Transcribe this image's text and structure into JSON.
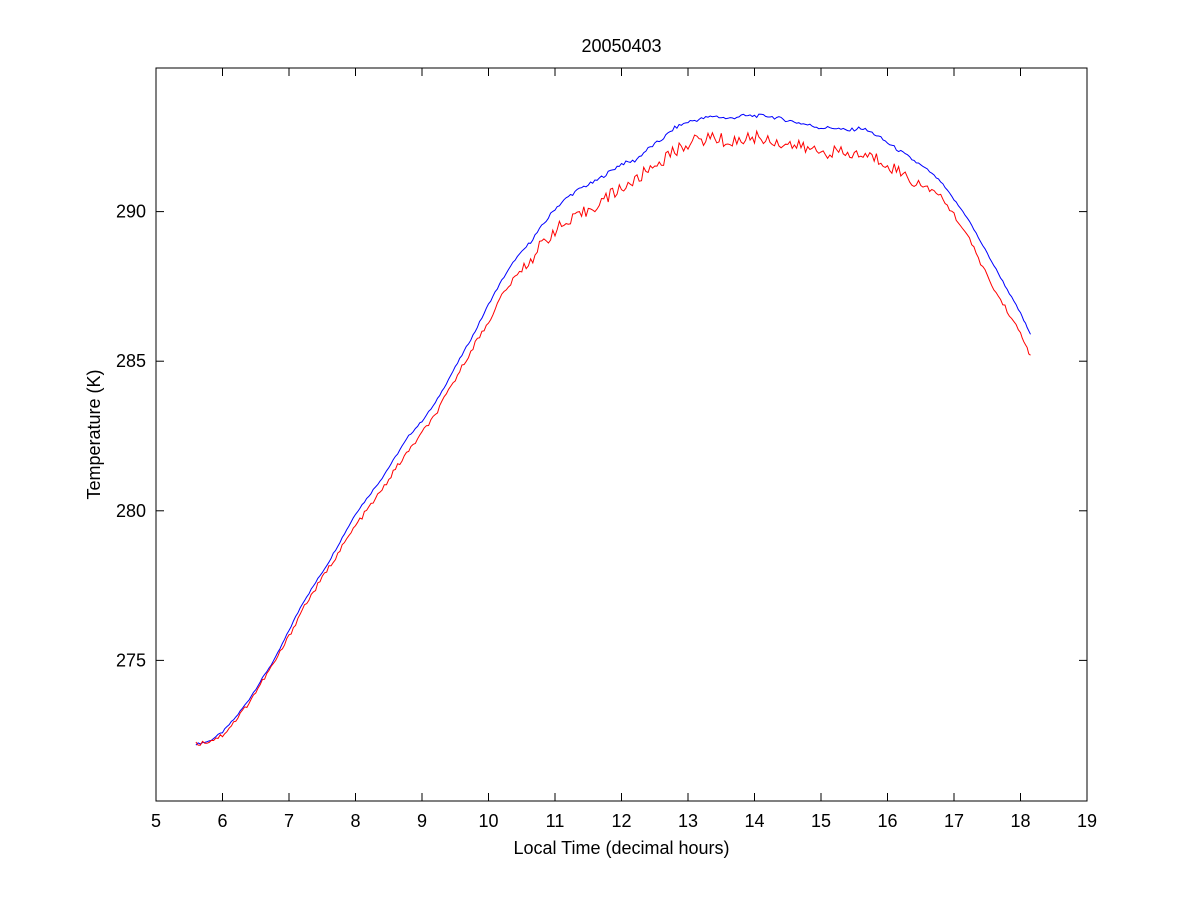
{
  "chart_data": {
    "type": "line",
    "title": "20050403",
    "xlabel": "Local Time (decimal hours)",
    "ylabel": "Temperature (K)",
    "xlim": [
      5,
      19
    ],
    "ylim": [
      270.3,
      294.8
    ],
    "xticks": [
      5,
      6,
      7,
      8,
      9,
      10,
      11,
      12,
      13,
      14,
      15,
      16,
      17,
      18,
      19
    ],
    "yticks": [
      275,
      280,
      285,
      290
    ],
    "grid": false,
    "legend": "none",
    "series": [
      {
        "color": "#0000ff",
        "x": [
          5.6,
          5.8,
          6.0,
          6.2,
          6.4,
          6.6,
          6.8,
          7.0,
          7.2,
          7.4,
          7.6,
          7.8,
          8.0,
          8.2,
          8.4,
          8.6,
          8.8,
          9.0,
          9.2,
          9.4,
          9.6,
          9.8,
          10.0,
          10.2,
          10.4,
          10.6,
          10.8,
          11.0,
          11.2,
          11.4,
          11.6,
          11.8,
          12.0,
          12.2,
          12.4,
          12.6,
          12.8,
          13.0,
          13.2,
          13.4,
          13.6,
          13.8,
          14.0,
          14.2,
          14.4,
          14.6,
          14.8,
          15.0,
          15.2,
          15.4,
          15.6,
          15.8,
          16.0,
          16.2,
          16.4,
          16.6,
          16.8,
          17.0,
          17.2,
          17.4,
          17.6,
          17.8,
          18.0,
          18.15
        ],
        "y": [
          272.2,
          272.3,
          272.6,
          273.1,
          273.7,
          274.4,
          275.1,
          276.0,
          276.9,
          277.6,
          278.3,
          279.1,
          279.9,
          280.5,
          281.1,
          281.8,
          282.5,
          283.0,
          283.6,
          284.4,
          285.2,
          286.0,
          286.9,
          287.7,
          288.4,
          288.9,
          289.5,
          290.1,
          290.5,
          290.8,
          291.0,
          291.3,
          291.6,
          291.7,
          292.1,
          292.4,
          292.8,
          293.0,
          293.1,
          293.2,
          293.1,
          293.2,
          293.2,
          293.2,
          293.1,
          293.0,
          292.9,
          292.8,
          292.8,
          292.7,
          292.8,
          292.6,
          292.3,
          292.0,
          291.7,
          291.4,
          291.0,
          290.4,
          289.8,
          289.0,
          288.2,
          287.4,
          286.6,
          285.9
        ]
      },
      {
        "color": "#ff0000",
        "x": [
          5.6,
          5.8,
          6.0,
          6.2,
          6.4,
          6.6,
          6.8,
          7.0,
          7.2,
          7.4,
          7.6,
          7.8,
          8.0,
          8.2,
          8.4,
          8.6,
          8.8,
          9.0,
          9.2,
          9.4,
          9.6,
          9.8,
          10.0,
          10.2,
          10.4,
          10.6,
          10.8,
          11.0,
          11.2,
          11.4,
          11.6,
          11.8,
          12.0,
          12.2,
          12.4,
          12.6,
          12.8,
          13.0,
          13.2,
          13.4,
          13.6,
          13.8,
          14.0,
          14.2,
          14.4,
          14.6,
          14.8,
          15.0,
          15.2,
          15.4,
          15.6,
          15.8,
          16.0,
          16.2,
          16.4,
          16.6,
          16.8,
          17.0,
          17.2,
          17.4,
          17.6,
          17.8,
          18.0,
          18.15
        ],
        "y": [
          272.2,
          272.3,
          272.5,
          273.0,
          273.6,
          274.3,
          275.0,
          275.8,
          276.7,
          277.4,
          278.1,
          278.8,
          279.5,
          280.1,
          280.7,
          281.4,
          282.0,
          282.6,
          283.2,
          284.0,
          284.8,
          285.6,
          286.3,
          287.2,
          287.8,
          288.3,
          288.9,
          289.4,
          289.6,
          289.9,
          290.2,
          290.5,
          290.8,
          291.0,
          291.4,
          291.7,
          292.0,
          292.3,
          292.4,
          292.5,
          292.3,
          292.4,
          292.5,
          292.4,
          292.3,
          292.2,
          292.1,
          292.0,
          292.0,
          291.9,
          291.9,
          291.8,
          291.6,
          291.3,
          291.0,
          290.8,
          290.5,
          289.9,
          289.2,
          288.3,
          287.4,
          286.7,
          285.9,
          285.2
        ]
      }
    ]
  }
}
